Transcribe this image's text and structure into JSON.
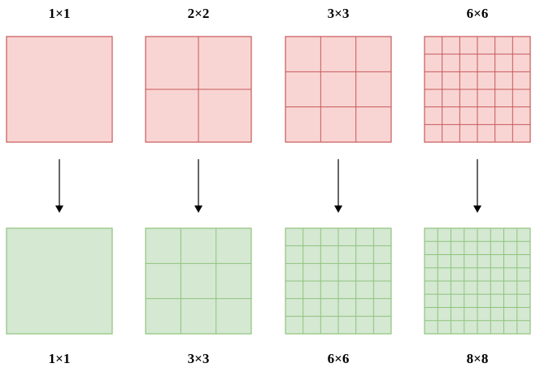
{
  "colors": {
    "top_fill": "#f8d5d3",
    "top_stroke": "#c8585b",
    "bottom_fill": "#d4e8d2",
    "bottom_stroke": "#8fc47c",
    "arrow": "#000000"
  },
  "columns": [
    {
      "top": {
        "label": "1×1",
        "grid": 1
      },
      "bottom": {
        "label": "1×1",
        "grid": 1
      }
    },
    {
      "top": {
        "label": "2×2",
        "grid": 2
      },
      "bottom": {
        "label": "3×3",
        "grid": 3
      }
    },
    {
      "top": {
        "label": "3×3",
        "grid": 3
      },
      "bottom": {
        "label": "6×6",
        "grid": 6
      }
    },
    {
      "top": {
        "label": "6×6",
        "grid": 6
      },
      "bottom": {
        "label": "8×8",
        "grid": 8
      }
    }
  ]
}
